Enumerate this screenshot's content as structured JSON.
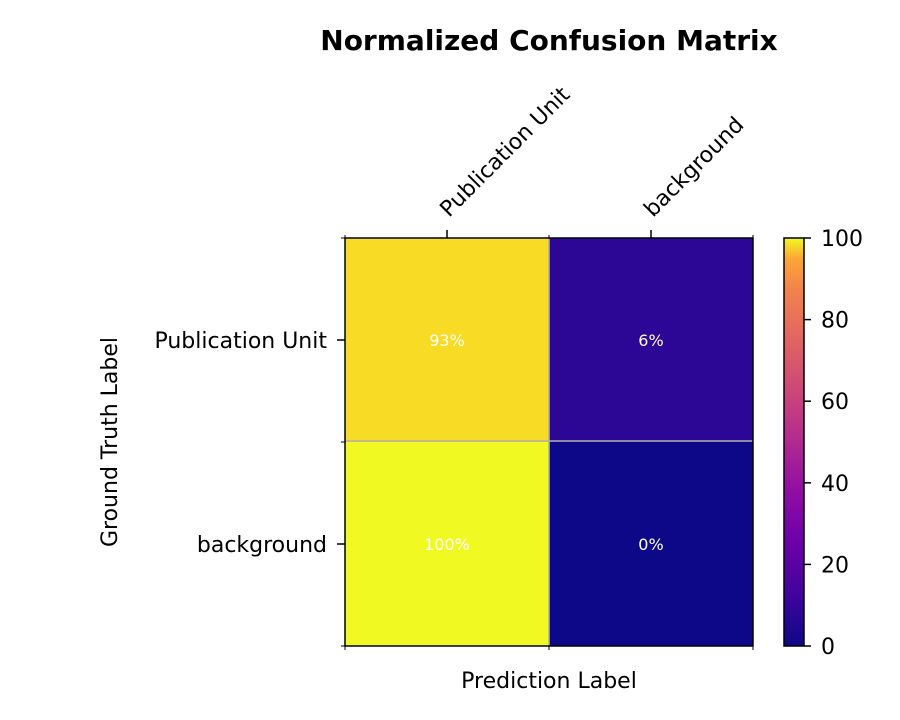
{
  "chart_data": {
    "type": "heatmap",
    "title": "Normalized Confusion Matrix",
    "xlabel": "Prediction Label",
    "ylabel": "Ground Truth Label",
    "x_categories": [
      "Publication Unit",
      "background"
    ],
    "y_categories": [
      "Publication Unit",
      "background"
    ],
    "values": [
      [
        93,
        6
      ],
      [
        100,
        0
      ]
    ],
    "cell_labels": [
      [
        "93%",
        "6%"
      ],
      [
        "100%",
        "0%"
      ]
    ],
    "colormap": "plasma",
    "colorbar": {
      "range": [
        0,
        100
      ],
      "ticks": [
        "0",
        "20",
        "40",
        "60",
        "80",
        "100"
      ]
    },
    "x_ticks_position": "top",
    "colors": {
      "gridline": "#b0b0b0",
      "cell_text": "#ffffff"
    }
  }
}
